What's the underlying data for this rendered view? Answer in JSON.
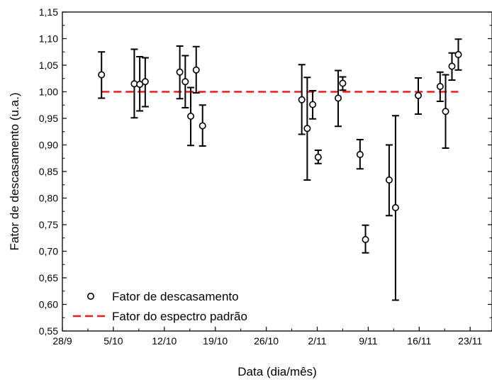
{
  "chart_data": {
    "type": "scatter",
    "xlabel": "Data (dia/mês)",
    "ylabel": "Fator de descasamento (u.a.)",
    "xlim": [
      "2014-09-28",
      "2014-11-26"
    ],
    "ylim": [
      0.55,
      1.15
    ],
    "x_ticks": [
      {
        "date": "2014-09-28",
        "label": "28/9"
      },
      {
        "date": "2014-10-05",
        "label": "5/10"
      },
      {
        "date": "2014-10-12",
        "label": "12/10"
      },
      {
        "date": "2014-10-19",
        "label": "19/10"
      },
      {
        "date": "2014-10-26",
        "label": "26/10"
      },
      {
        "date": "2014-11-02",
        "label": "2/11"
      },
      {
        "date": "2014-11-09",
        "label": "9/11"
      },
      {
        "date": "2014-11-16",
        "label": "16/11"
      },
      {
        "date": "2014-11-23",
        "label": "23/11"
      }
    ],
    "y_ticks": [
      {
        "value": 0.55,
        "label": "0,55"
      },
      {
        "value": 0.6,
        "label": "0,60"
      },
      {
        "value": 0.65,
        "label": "0,65"
      },
      {
        "value": 0.7,
        "label": "0,70"
      },
      {
        "value": 0.75,
        "label": "0,75"
      },
      {
        "value": 0.8,
        "label": "0,80"
      },
      {
        "value": 0.85,
        "label": "0,85"
      },
      {
        "value": 0.9,
        "label": "0,90"
      },
      {
        "value": 0.95,
        "label": "0,95"
      },
      {
        "value": 1.0,
        "label": "1,00"
      },
      {
        "value": 1.05,
        "label": "1,05"
      },
      {
        "value": 1.1,
        "label": "1,10"
      },
      {
        "value": 1.15,
        "label": "1,15"
      }
    ],
    "series": [
      {
        "name": "Fator de descasamento",
        "style": "open-circle-errorbar",
        "color": "#000000",
        "points": [
          {
            "x": "2014-10-03 09:00",
            "y": 1.032,
            "yerr_low": 0.988,
            "yerr_high": 1.075
          },
          {
            "x": "2014-10-07 21:00",
            "y": 1.015,
            "yerr_low": 0.951,
            "yerr_high": 1.08
          },
          {
            "x": "2014-10-08 15:00",
            "y": 1.014,
            "yerr_low": 0.964,
            "yerr_high": 1.066
          },
          {
            "x": "2014-10-09 09:00",
            "y": 1.019,
            "yerr_low": 0.972,
            "yerr_high": 1.064
          },
          {
            "x": "2014-10-14 03:00",
            "y": 1.037,
            "yerr_low": 0.987,
            "yerr_high": 1.086
          },
          {
            "x": "2014-10-14 21:00",
            "y": 1.019,
            "yerr_low": 0.97,
            "yerr_high": 1.068
          },
          {
            "x": "2014-10-15 15:00",
            "y": 0.954,
            "yerr_low": 0.899,
            "yerr_high": 1.008
          },
          {
            "x": "2014-10-16 09:00",
            "y": 1.041,
            "yerr_low": 0.998,
            "yerr_high": 1.085
          },
          {
            "x": "2014-10-17 06:00",
            "y": 0.936,
            "yerr_low": 0.898,
            "yerr_high": 0.975
          },
          {
            "x": "2014-10-30 21:00",
            "y": 0.985,
            "yerr_low": 0.92,
            "yerr_high": 1.051
          },
          {
            "x": "2014-10-31 15:00",
            "y": 0.931,
            "yerr_low": 0.834,
            "yerr_high": 1.027
          },
          {
            "x": "2014-11-01 09:00",
            "y": 0.976,
            "yerr_low": 0.949,
            "yerr_high": 1.002
          },
          {
            "x": "2014-11-02 03:00",
            "y": 0.877,
            "yerr_low": 0.865,
            "yerr_high": 0.89
          },
          {
            "x": "2014-11-04 21:00",
            "y": 0.988,
            "yerr_low": 0.935,
            "yerr_high": 1.04
          },
          {
            "x": "2014-11-05 12:00",
            "y": 1.016,
            "yerr_low": 1.003,
            "yerr_high": 1.028
          },
          {
            "x": "2014-11-07 21:00",
            "y": 0.882,
            "yerr_low": 0.855,
            "yerr_high": 0.91
          },
          {
            "x": "2014-11-08 15:00",
            "y": 0.722,
            "yerr_low": 0.697,
            "yerr_high": 0.749
          },
          {
            "x": "2014-11-11 21:00",
            "y": 0.834,
            "yerr_low": 0.767,
            "yerr_high": 0.9
          },
          {
            "x": "2014-11-12 18:00",
            "y": 0.782,
            "yerr_low": 0.608,
            "yerr_high": 0.955
          },
          {
            "x": "2014-11-15 21:00",
            "y": 0.993,
            "yerr_low": 0.958,
            "yerr_high": 1.026
          },
          {
            "x": "2014-11-18 21:00",
            "y": 1.01,
            "yerr_low": 0.982,
            "yerr_high": 1.037
          },
          {
            "x": "2014-11-19 15:00",
            "y": 0.963,
            "yerr_low": 0.894,
            "yerr_high": 1.032
          },
          {
            "x": "2014-11-20 12:00",
            "y": 1.048,
            "yerr_low": 1.022,
            "yerr_high": 1.073
          },
          {
            "x": "2014-11-21 09:00",
            "y": 1.07,
            "yerr_low": 1.041,
            "yerr_high": 1.099
          }
        ]
      },
      {
        "name": "Fator do espectro padrão",
        "style": "dashed-line",
        "color": "#ee1c1c",
        "points": [
          {
            "x": "2014-10-03 09:00",
            "y": 1.0
          },
          {
            "x": "2014-11-21 09:00",
            "y": 1.0
          }
        ]
      }
    ],
    "grid": false,
    "legend": "bottom-left"
  }
}
